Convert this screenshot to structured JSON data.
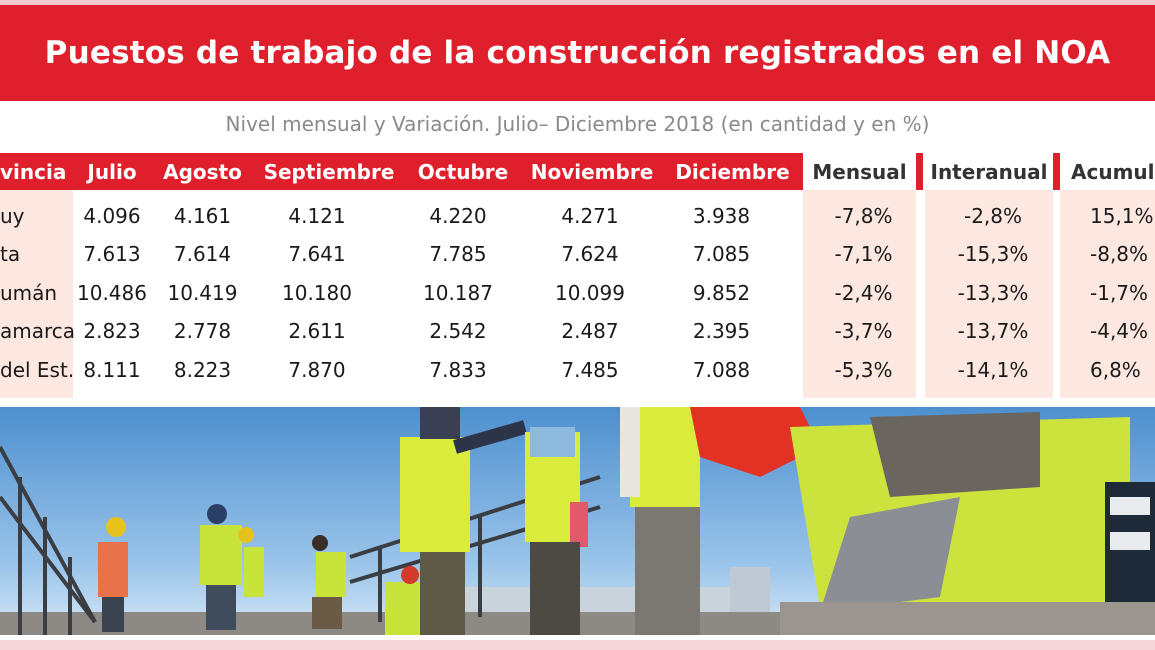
{
  "title": "Puestos de trabajo de la construcción registrados en el NOA",
  "subtitle": "Nivel mensual y Variación. Julio– Diciembre 2018 (en cantidad y en %)",
  "columns": [
    "vincia",
    "Julio",
    "Agosto",
    "Septiembre",
    "Octubre",
    "Noviembre",
    "Diciembre",
    "Mensual",
    "Interanual",
    "Acumula"
  ],
  "rows": [
    {
      "label": "uy",
      "values": [
        "4.096",
        "4.161",
        "4.121",
        "4.220",
        "4.271",
        "3.938",
        "-7,8%",
        "-2,8%",
        "15,1%"
      ]
    },
    {
      "label": "ta",
      "values": [
        "7.613",
        "7.614",
        "7.641",
        "7.785",
        "7.624",
        "7.085",
        "-7,1%",
        "-15,3%",
        "-8,8%"
      ]
    },
    {
      "label": "umán",
      "values": [
        "10.486",
        "10.419",
        "10.180",
        "10.187",
        "10.099",
        "9.852",
        "-2,4%",
        "-13,3%",
        "-1,7%"
      ]
    },
    {
      "label": "amarca",
      "values": [
        "2.823",
        "2.778",
        "2.611",
        "2.542",
        "2.487",
        "2.395",
        "-3,7%",
        "-13,7%",
        "-4,4%"
      ]
    },
    {
      "label": "del Est.",
      "values": [
        "8.111",
        "8.223",
        "7.870",
        "7.833",
        "7.485",
        "7.088",
        "-5,3%",
        "-14,1%",
        "6,8%"
      ]
    }
  ],
  "colors": {
    "brand_red": "#e01f2d",
    "pink_cells": "#fde7e1",
    "subtitle_gray": "#8a8a8a"
  },
  "chart_data": {
    "type": "table",
    "title": "Puestos de trabajo de la construcción registrados en el NOA",
    "subtitle": "Nivel mensual y Variación. Julio– Diciembre 2018 (en cantidad y en %)",
    "categories": [
      "Julio",
      "Agosto",
      "Septiembre",
      "Octubre",
      "Noviembre",
      "Diciembre"
    ],
    "series": [
      {
        "name": "uy",
        "values": [
          4096,
          4161,
          4121,
          4220,
          4271,
          3938
        ],
        "mensual": -7.8,
        "interanual": -2.8,
        "acumulada": 15.1
      },
      {
        "name": "ta",
        "values": [
          7613,
          7614,
          7641,
          7785,
          7624,
          7085
        ],
        "mensual": -7.1,
        "interanual": -15.3,
        "acumulada": -8.8
      },
      {
        "name": "umán",
        "values": [
          10486,
          10419,
          10180,
          10187,
          10099,
          9852
        ],
        "mensual": -2.4,
        "interanual": -13.3,
        "acumulada": -1.7
      },
      {
        "name": "amarca",
        "values": [
          2823,
          2778,
          2611,
          2542,
          2487,
          2395
        ],
        "mensual": -3.7,
        "interanual": -13.7,
        "acumulada": -4.4
      },
      {
        "name": "del Est.",
        "values": [
          8111,
          8223,
          7870,
          7833,
          7485,
          7088
        ],
        "mensual": -5.3,
        "interanual": -14.1,
        "acumulada": 6.8
      }
    ]
  }
}
